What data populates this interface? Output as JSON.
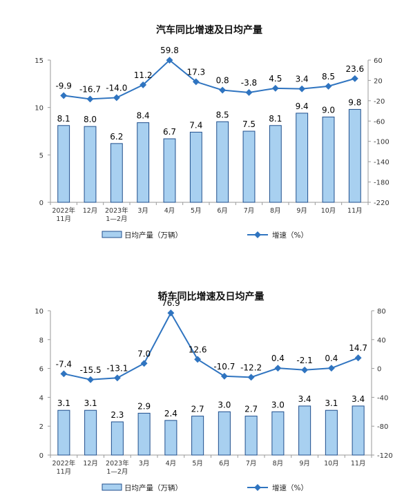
{
  "chart_data": [
    {
      "type": "bar",
      "title": "汽车同比增速及日均产量",
      "categories": [
        [
          "2022年",
          "11月"
        ],
        [
          "12月"
        ],
        [
          "2023年",
          "1—2月"
        ],
        [
          "3月"
        ],
        [
          "4月"
        ],
        [
          "5月"
        ],
        [
          "6月"
        ],
        [
          "7月"
        ],
        [
          "8月"
        ],
        [
          "9月"
        ],
        [
          "10月"
        ],
        [
          "11月"
        ]
      ],
      "bar_series": {
        "name": "日均产量（万辆）",
        "values": [
          8.1,
          8.0,
          6.2,
          8.4,
          6.7,
          7.4,
          8.5,
          7.5,
          8.1,
          9.4,
          9.0,
          9.8
        ]
      },
      "line_series": {
        "name": "增速（%）",
        "values": [
          -9.9,
          -16.7,
          -14.0,
          11.2,
          59.8,
          17.3,
          0.8,
          -3.8,
          4.5,
          3.4,
          8.5,
          23.6
        ]
      },
      "y_left": {
        "min": 0,
        "max": 15,
        "ticks": [
          0,
          5,
          10,
          15
        ]
      },
      "y_right": {
        "min": -220,
        "max": 60,
        "ticks": [
          60,
          20,
          -20,
          -60,
          -100,
          -140,
          -180,
          -220
        ]
      },
      "colors": {
        "bar_fill": "#a8d0f0",
        "bar_stroke": "#1f4e8c",
        "line": "#2f74c0"
      }
    },
    {
      "type": "bar",
      "title": "轿车同比增速及日均产量",
      "categories": [
        [
          "2022年",
          "11月"
        ],
        [
          "12月"
        ],
        [
          "2023年",
          "1—2月"
        ],
        [
          "3月"
        ],
        [
          "4月"
        ],
        [
          "5月"
        ],
        [
          "6月"
        ],
        [
          "7月"
        ],
        [
          "8月"
        ],
        [
          "9月"
        ],
        [
          "10月"
        ],
        [
          "11月"
        ]
      ],
      "bar_series": {
        "name": "日均产量（万辆）",
        "values": [
          3.1,
          3.1,
          2.3,
          2.9,
          2.4,
          2.7,
          3.0,
          2.7,
          3.0,
          3.4,
          3.1,
          3.4
        ]
      },
      "line_series": {
        "name": "增速（%）",
        "values": [
          -7.4,
          -15.5,
          -13.1,
          7.0,
          76.9,
          12.6,
          -10.7,
          -12.2,
          0.4,
          -2.1,
          0.4,
          14.7
        ]
      },
      "y_left": {
        "min": 0,
        "max": 10,
        "ticks": [
          0,
          2,
          4,
          6,
          8,
          10
        ]
      },
      "y_right": {
        "min": -120,
        "max": 80,
        "ticks": [
          80,
          40,
          0,
          -40,
          -80,
          -120
        ]
      },
      "colors": {
        "bar_fill": "#a8d0f0",
        "bar_stroke": "#1f4e8c",
        "line": "#2f74c0"
      }
    }
  ]
}
